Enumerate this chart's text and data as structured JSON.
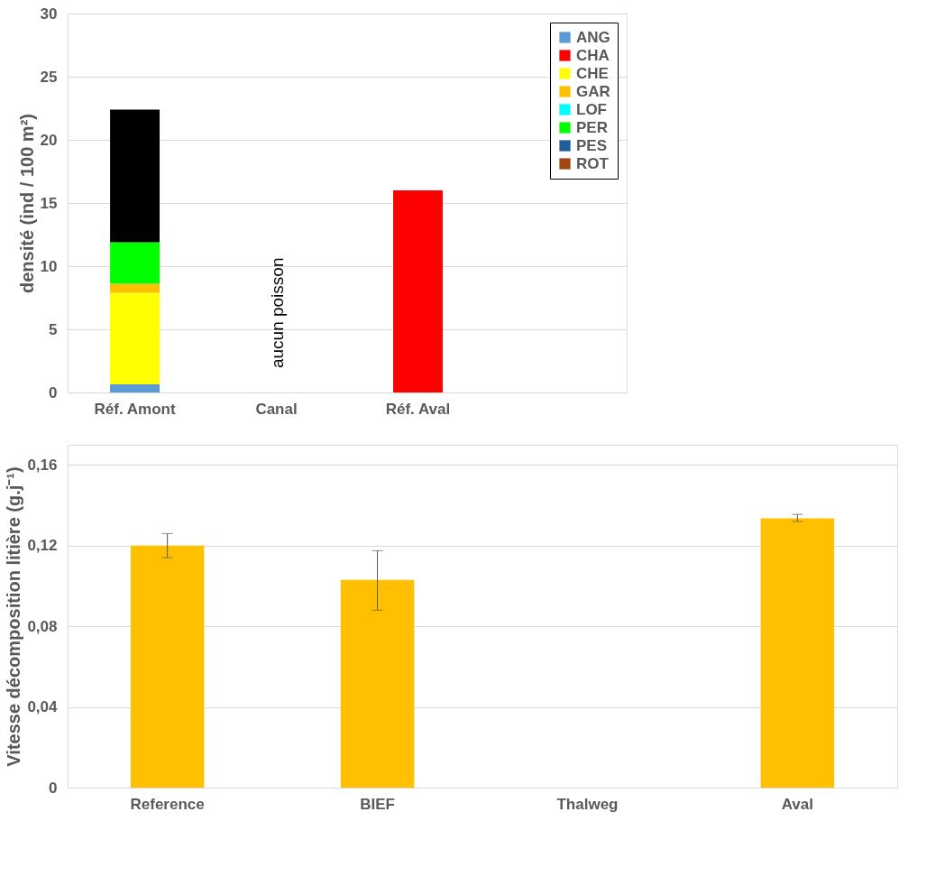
{
  "chart_data": [
    {
      "type": "bar",
      "stacked": true,
      "categories": [
        "Réf.  Amont",
        "Canal",
        "Réf.  Aval",
        null
      ],
      "ylabel": "densité (ind / 100 m²)",
      "ylim": [
        0,
        30
      ],
      "yticks": [
        0,
        5,
        10,
        15,
        20,
        25,
        30
      ],
      "grid": "y",
      "legend": "top right",
      "series": [
        {
          "name": "ANG",
          "color": "#5b9bd5",
          "values": [
            0.65,
            null,
            null,
            null
          ]
        },
        {
          "name": "CHA",
          "color": "#ff0000",
          "values": [
            null,
            null,
            16.0,
            null
          ]
        },
        {
          "name": "CHE",
          "color": "#ffff00",
          "values": [
            7.25,
            null,
            null,
            null
          ]
        },
        {
          "name": "GAR",
          "color": "#ffc000",
          "values": [
            0.7,
            null,
            null,
            null
          ]
        },
        {
          "name": "LOF",
          "color": "#00ffff",
          "values": [
            null,
            null,
            null,
            null
          ]
        },
        {
          "name": "PER",
          "color": "#00ff00",
          "values": [
            3.3,
            null,
            null,
            null
          ]
        },
        {
          "name": "PES",
          "color": "#1f5c99",
          "values": [
            null,
            null,
            null,
            null
          ]
        },
        {
          "name": "ROT",
          "color": "#a0480f",
          "values": [
            null,
            null,
            null,
            null
          ]
        },
        {
          "color": "#000000",
          "values": [
            10.5,
            null,
            null,
            null
          ]
        }
      ],
      "annotations": [
        "aucun poisson"
      ]
    },
    {
      "type": "bar",
      "categories": [
        "Reference",
        "BIEF",
        "Thalweg",
        "Aval"
      ],
      "ylabel": "Vitesse décomposition litière (g.j⁻¹)",
      "ylim": [
        0,
        0.17
      ],
      "yticks": [
        {
          "value": 0,
          "label": "0"
        },
        {
          "value": 0.04,
          "label": "0,04"
        },
        {
          "value": 0.08,
          "label": "0,08"
        },
        {
          "value": 0.12,
          "label": "0,12"
        },
        {
          "value": 0.16,
          "label": "0,16"
        }
      ],
      "grid": "y",
      "series": [
        {
          "color": "#ffc000",
          "values": [
            0.12,
            0.103,
            null,
            0.1335
          ],
          "errors": [
            0.006,
            [
              0.088,
              0.1175
            ],
            null,
            [
              0.132,
              0.1355
            ]
          ]
        }
      ]
    }
  ]
}
